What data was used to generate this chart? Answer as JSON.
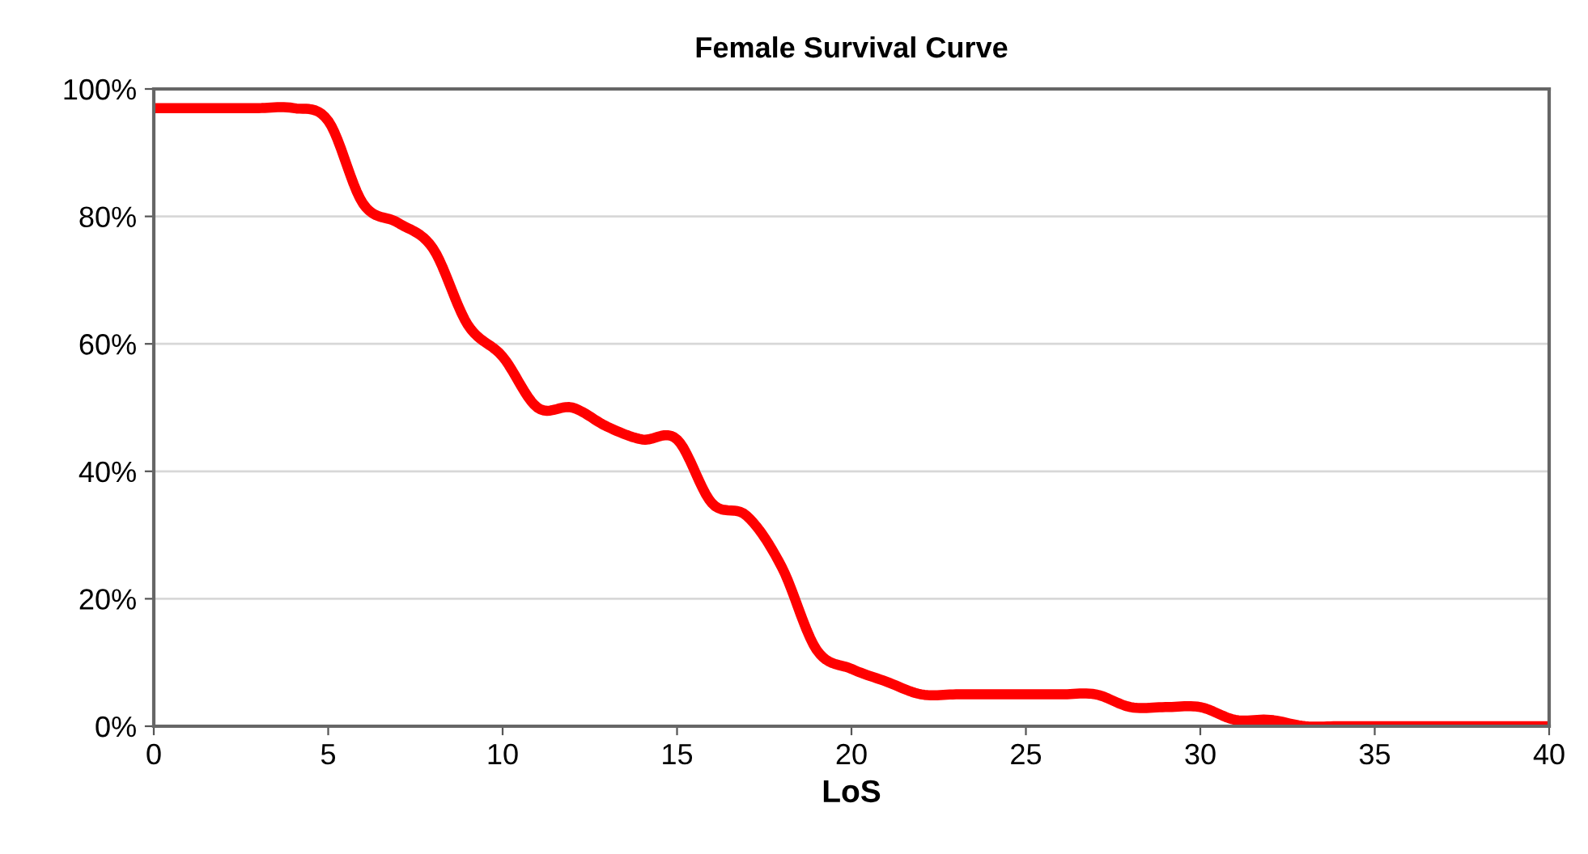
{
  "chart_data": {
    "type": "line",
    "title": "Female Survival Curve",
    "xlabel": "LoS",
    "x": [
      0,
      1,
      2,
      3,
      4,
      5,
      6,
      7,
      8,
      9,
      10,
      11,
      12,
      13,
      14,
      15,
      16,
      17,
      18,
      19,
      20,
      21,
      22,
      23,
      24,
      25,
      26,
      27,
      28,
      29,
      30,
      31,
      32,
      33,
      34,
      35,
      36,
      37,
      38,
      39,
      40
    ],
    "series": [
      {
        "color": "#ff0000",
        "values": [
          97,
          97,
          97,
          97,
          97,
          95,
          82,
          79,
          75,
          63,
          58,
          50,
          50,
          47,
          45,
          45,
          35,
          33,
          25,
          12,
          9,
          7,
          5,
          5,
          5,
          5,
          5,
          5,
          3,
          3,
          3,
          1,
          1,
          0,
          0,
          0,
          0,
          0,
          0,
          0,
          0
        ]
      }
    ],
    "xlim": [
      0,
      40
    ],
    "xticks": [
      0,
      5,
      10,
      15,
      20,
      25,
      30,
      35,
      40
    ],
    "ylim": [
      0,
      100
    ],
    "yticks": [
      {
        "value": 0,
        "label": "0%"
      },
      {
        "value": 20,
        "label": "20%"
      },
      {
        "value": 40,
        "label": "40%"
      },
      {
        "value": 60,
        "label": "60%"
      },
      {
        "value": 80,
        "label": "80%"
      },
      {
        "value": 100,
        "label": "100%"
      }
    ],
    "grid": "y",
    "legend": false,
    "marker": "none",
    "line_style": "solid"
  }
}
